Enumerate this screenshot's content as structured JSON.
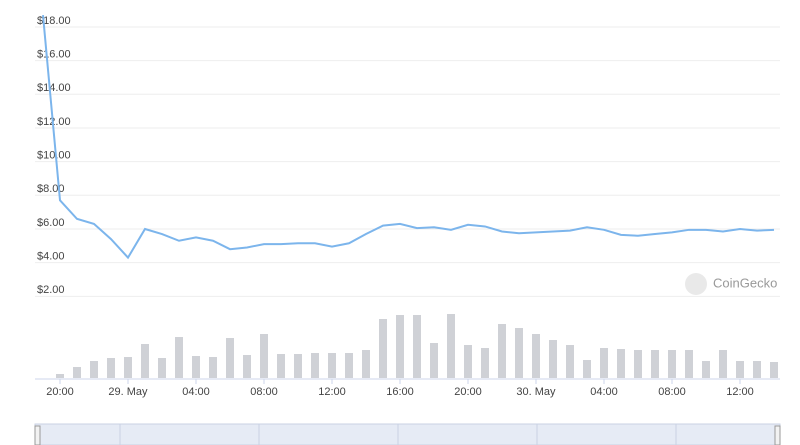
{
  "chart_data": {
    "type": "line",
    "categories": [
      null,
      "20:00",
      null,
      null,
      null,
      "29. May",
      null,
      null,
      null,
      "04:00",
      null,
      null,
      null,
      "08:00",
      null,
      null,
      null,
      "12:00",
      null,
      null,
      null,
      "16:00",
      null,
      null,
      null,
      "20:00",
      null,
      null,
      null,
      "30. May",
      null,
      null,
      null,
      "04:00",
      null,
      null,
      null,
      "08:00",
      null,
      null,
      null,
      "12:00",
      null,
      null
    ],
    "values": [
      18.7,
      7.7,
      6.6,
      6.3,
      5.4,
      4.3,
      6.0,
      5.7,
      5.3,
      5.5,
      5.3,
      4.8,
      4.9,
      5.1,
      5.1,
      5.15,
      5.15,
      4.95,
      5.15,
      5.7,
      6.2,
      6.3,
      6.05,
      6.1,
      5.95,
      6.25,
      6.15,
      5.85,
      5.75,
      5.8,
      5.85,
      5.9,
      6.1,
      5.95,
      5.65,
      5.6,
      5.7,
      5.8,
      5.95,
      5.95,
      5.85,
      6.0,
      5.9,
      5.95
    ],
    "color": "#7cb5ec",
    "volume": [
      null,
      4,
      11,
      17,
      20,
      21,
      34,
      20,
      41,
      22,
      21,
      40,
      23,
      44,
      24,
      24,
      25,
      25,
      25,
      28,
      59,
      63,
      63,
      35,
      64,
      33,
      30,
      54,
      50,
      44,
      38,
      33,
      18,
      30,
      29,
      28,
      28,
      28,
      28,
      17,
      28,
      17,
      17,
      16
    ],
    "volume_color": "#cfd1d6",
    "ylim": [
      0,
      19.6
    ],
    "yticks": [
      {
        "value": 2,
        "label": "$2.00"
      },
      {
        "value": 4,
        "label": "$4.00"
      },
      {
        "value": 6,
        "label": "$6.00"
      },
      {
        "value": 8,
        "label": "$8.00"
      },
      {
        "value": 10,
        "label": "$10.00"
      },
      {
        "value": 12,
        "label": "$12.00"
      },
      {
        "value": 14,
        "label": "$14.00"
      },
      {
        "value": 16,
        "label": "$16.00"
      },
      {
        "value": 18,
        "label": "$18.00"
      }
    ],
    "grid": true,
    "watermark": "CoinGecko"
  }
}
